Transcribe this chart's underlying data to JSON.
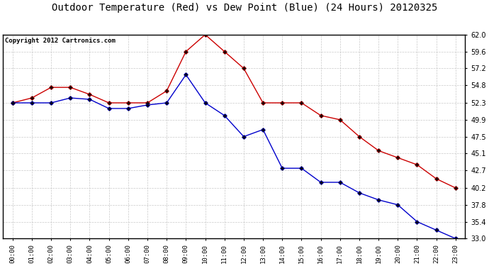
{
  "title": "Outdoor Temperature (Red) vs Dew Point (Blue) (24 Hours) 20120325",
  "copyright": "Copyright 2012 Cartronics.com",
  "x_labels": [
    "00:00",
    "01:00",
    "02:00",
    "03:00",
    "04:00",
    "05:00",
    "06:00",
    "07:00",
    "08:00",
    "09:00",
    "10:00",
    "11:00",
    "12:00",
    "13:00",
    "14:00",
    "15:00",
    "16:00",
    "17:00",
    "18:00",
    "19:00",
    "20:00",
    "21:00",
    "22:00",
    "23:00"
  ],
  "temp_red": [
    52.3,
    53.0,
    54.5,
    54.5,
    53.5,
    52.3,
    52.3,
    52.3,
    54.0,
    59.6,
    62.0,
    59.6,
    57.2,
    52.3,
    52.3,
    52.3,
    50.5,
    49.9,
    47.5,
    45.5,
    44.5,
    43.5,
    41.5,
    40.2
  ],
  "dew_blue": [
    52.3,
    52.3,
    52.3,
    53.0,
    52.8,
    51.5,
    51.5,
    52.0,
    52.3,
    56.3,
    52.3,
    50.5,
    47.5,
    48.5,
    43.0,
    43.0,
    41.0,
    41.0,
    39.5,
    38.5,
    37.8,
    35.4,
    34.2,
    33.0
  ],
  "ylim": [
    33.0,
    62.0
  ],
  "yticks": [
    33.0,
    35.4,
    37.8,
    40.2,
    42.7,
    45.1,
    47.5,
    49.9,
    52.3,
    54.8,
    57.2,
    59.6,
    62.0
  ],
  "bg_color": "#ffffff",
  "plot_bg": "#ffffff",
  "grid_color": "#bbbbbb",
  "red_color": "#cc0000",
  "blue_color": "#0000cc",
  "title_fontsize": 10,
  "copyright_fontsize": 6.5
}
